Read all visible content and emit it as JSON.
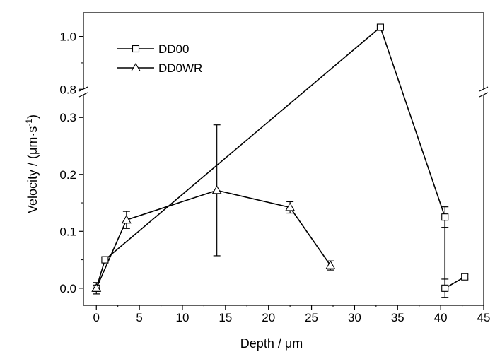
{
  "chart_data": {
    "type": "scatter",
    "xlabel": "Depth / μm",
    "ylabel_main": "Velocity / (μm·s",
    "ylabel_sup": "-1",
    "ylabel_end": ")",
    "xlim": [
      -1.5,
      45
    ],
    "xticks": [
      0,
      5,
      10,
      15,
      20,
      25,
      30,
      35,
      40,
      45
    ],
    "y_break": {
      "lower_range": [
        -0.03,
        0.345
      ],
      "upper_range": [
        0.79,
        1.09
      ]
    },
    "yticks_lower": [
      "0.0",
      "0.1",
      "0.2",
      "0.3"
    ],
    "yticks_upper": [
      "0.8",
      "1.0"
    ],
    "grid": false,
    "legend_position": "top-left",
    "series": [
      {
        "name": "DD00",
        "marker": "square",
        "color": "#000000",
        "points": [
          {
            "x": 0,
            "y": 0.0,
            "err": 0.005
          },
          {
            "x": 1,
            "y": 0.05,
            "err": 0.004
          },
          {
            "x": 33,
            "y": 1.035,
            "err": 0.005
          },
          {
            "x": 40.5,
            "y": 0.125,
            "err": 0.018
          },
          {
            "x": 40.5,
            "y": 0.0,
            "err": 0.016
          },
          {
            "x": 42.8,
            "y": 0.02,
            "err": 0.004
          }
        ]
      },
      {
        "name": "DD0WR",
        "marker": "triangle",
        "color": "#000000",
        "points": [
          {
            "x": 0,
            "y": 0.0,
            "err": 0.01
          },
          {
            "x": 3.5,
            "y": 0.12,
            "err": 0.015
          },
          {
            "x": 14,
            "y": 0.172,
            "err": 0.115
          },
          {
            "x": 22.5,
            "y": 0.142,
            "err": 0.01
          },
          {
            "x": 27.2,
            "y": 0.04,
            "err": 0.008
          }
        ]
      }
    ]
  }
}
